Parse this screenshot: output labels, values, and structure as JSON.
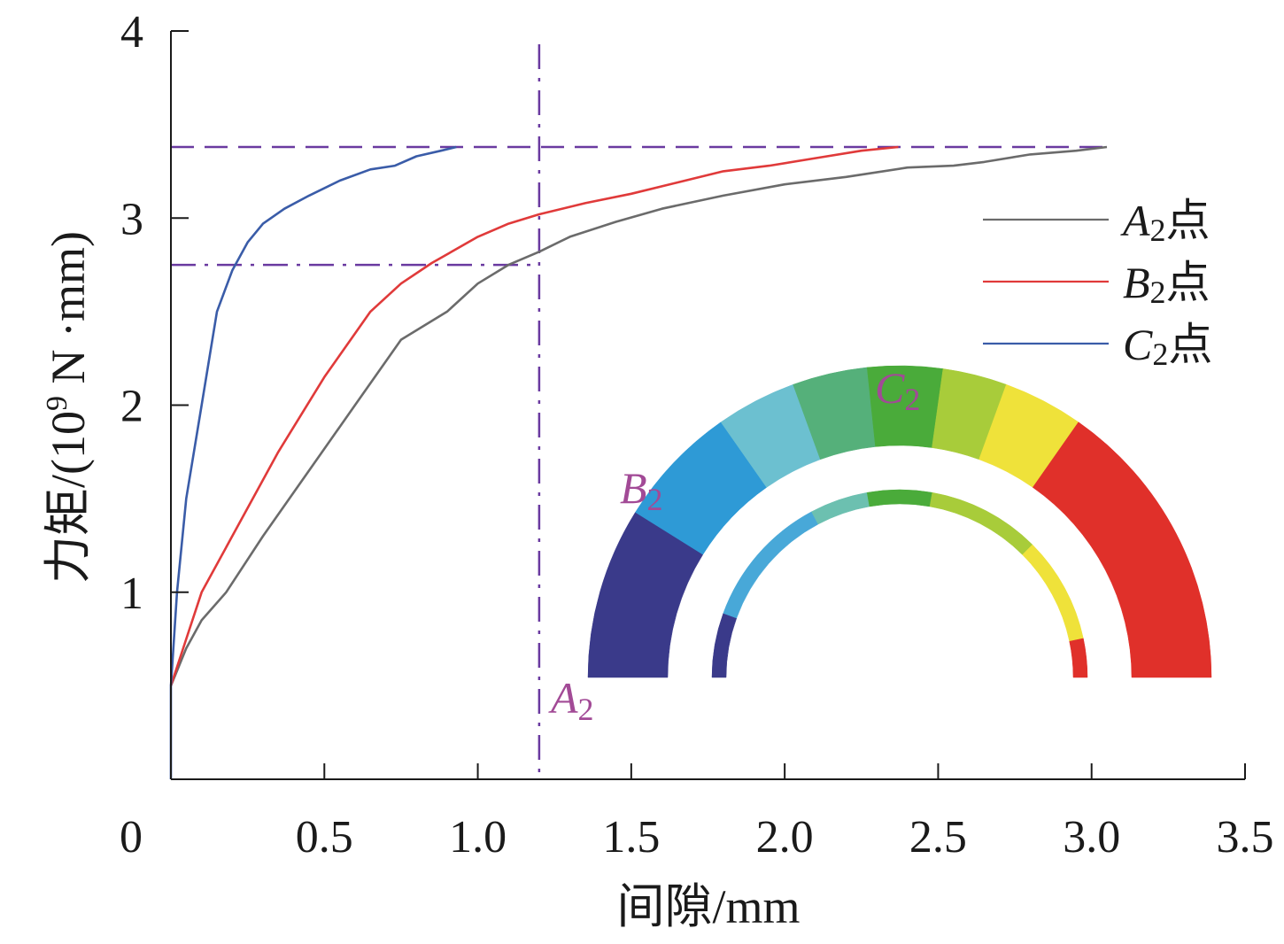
{
  "chart_data": {
    "type": "line",
    "xlabel": "间隙/mm",
    "ylabel_prefix": "力矩/(10",
    "ylabel_exp": "9",
    "ylabel_suffix": " N ·mm)",
    "xlim": [
      0,
      3.5
    ],
    "ylim": [
      0,
      4
    ],
    "x_ticks": [
      0,
      0.5,
      1.0,
      1.5,
      2.0,
      2.5,
      3.0,
      3.5
    ],
    "x_tick_labels": [
      "0",
      "0.5",
      "1.0",
      "1.5",
      "2.0",
      "2.5",
      "3.0",
      "3.5"
    ],
    "y_ticks": [
      1,
      2,
      3,
      4
    ],
    "y_tick_labels": [
      "1",
      "2",
      "3",
      "4"
    ],
    "grid": false,
    "legend_position": "right",
    "series": [
      {
        "name_main": "A",
        "name_sub": "2",
        "name_suffix": "点",
        "color": "#6b6b6b",
        "x": [
          0,
          0.05,
          0.1,
          0.18,
          0.3,
          0.45,
          0.6,
          0.75,
          0.9,
          1.0,
          1.1,
          1.2,
          1.3,
          1.45,
          1.6,
          1.8,
          2.0,
          2.2,
          2.4,
          2.55,
          2.65,
          2.8,
          2.95,
          3.05
        ],
        "y": [
          0.5,
          0.7,
          0.85,
          1.0,
          1.3,
          1.65,
          2.0,
          2.35,
          2.5,
          2.65,
          2.75,
          2.82,
          2.9,
          2.98,
          3.05,
          3.12,
          3.18,
          3.22,
          3.27,
          3.28,
          3.3,
          3.34,
          3.36,
          3.38
        ]
      },
      {
        "name_main": "B",
        "name_sub": "2",
        "name_suffix": "点",
        "color": "#e03a3a",
        "x": [
          0,
          0.05,
          0.1,
          0.2,
          0.35,
          0.5,
          0.65,
          0.75,
          0.85,
          1.0,
          1.1,
          1.2,
          1.35,
          1.5,
          1.65,
          1.8,
          1.95,
          2.1,
          2.25,
          2.37
        ],
        "y": [
          0.5,
          0.75,
          1.0,
          1.3,
          1.75,
          2.15,
          2.5,
          2.65,
          2.76,
          2.9,
          2.97,
          3.02,
          3.08,
          3.13,
          3.19,
          3.25,
          3.28,
          3.32,
          3.36,
          3.38
        ]
      },
      {
        "name_main": "C",
        "name_sub": "2",
        "name_suffix": "点",
        "color": "#3a5ca8",
        "x": [
          0,
          0.02,
          0.05,
          0.1,
          0.15,
          0.2,
          0.25,
          0.3,
          0.37,
          0.45,
          0.55,
          0.65,
          0.73,
          0.8,
          0.88,
          0.93
        ],
        "y": [
          0.5,
          1.0,
          1.5,
          2.0,
          2.5,
          2.72,
          2.87,
          2.97,
          3.05,
          3.12,
          3.2,
          3.26,
          3.28,
          3.33,
          3.36,
          3.38
        ]
      }
    ],
    "reference_lines": [
      {
        "orientation": "horizontal",
        "value": 3.38,
        "style": "dashed",
        "color": "#6a3aa0"
      },
      {
        "orientation": "horizontal",
        "value": 2.75,
        "style": "dashdot",
        "color": "#6a3aa0",
        "x_end": 1.2
      },
      {
        "orientation": "vertical",
        "value": 1.2,
        "style": "dashdot",
        "color": "#6a3aa0"
      }
    ],
    "inset": {
      "description": "semicircular ring section with contour coloring",
      "outer_ring_colors": [
        "#3a3a8a",
        "#2e9ad6",
        "#6cc0d0",
        "#55b07a",
        "#4aab3a",
        "#a8cc3a",
        "#efe23a",
        "#e0302a"
      ],
      "inner_ring_colors": [
        "#3a3a8a",
        "#48a8d8",
        "#6cc0b0",
        "#4aab3a",
        "#a8cc3a",
        "#efe23a",
        "#e0302a"
      ],
      "point_labels": [
        {
          "main": "A",
          "sub": "2"
        },
        {
          "main": "B",
          "sub": "2"
        },
        {
          "main": "C",
          "sub": "2"
        }
      ]
    }
  }
}
